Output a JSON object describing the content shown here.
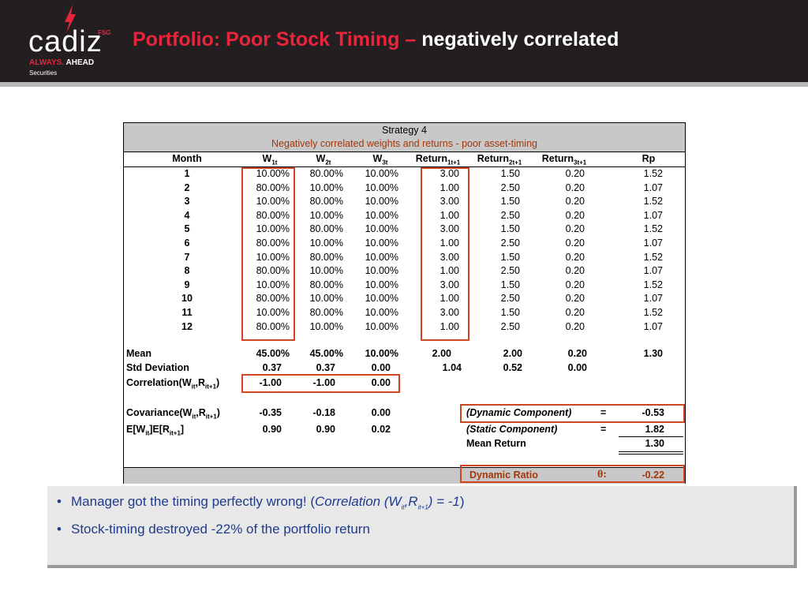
{
  "logo": {
    "word": "cadiz",
    "fsg": "FSG",
    "tag_a": "ALWAYS.",
    "tag_b": "AHEAD",
    "sub": "Securities"
  },
  "title": {
    "red": "Portfolio: Poor Stock Timing – ",
    "white": "negatively correlated"
  },
  "table": {
    "title": "Strategy 4",
    "subtitle": "Negatively correlated weights and returns - poor asset-timing",
    "headers": {
      "month": "Month",
      "w": "W",
      "ret": "Return",
      "rp": "Rp",
      "sub1t": "1t",
      "sub2t": "2t",
      "sub3t": "3t",
      "sub1": "1t+1",
      "sub2": "2t+1",
      "sub3": "3t+1"
    },
    "rows": [
      [
        "1",
        "10.00%",
        "80.00%",
        "10.00%",
        "3.00",
        "1.50",
        "0.20",
        "1.52"
      ],
      [
        "2",
        "80.00%",
        "10.00%",
        "10.00%",
        "1.00",
        "2.50",
        "0.20",
        "1.07"
      ],
      [
        "3",
        "10.00%",
        "80.00%",
        "10.00%",
        "3.00",
        "1.50",
        "0.20",
        "1.52"
      ],
      [
        "4",
        "80.00%",
        "10.00%",
        "10.00%",
        "1.00",
        "2.50",
        "0.20",
        "1.07"
      ],
      [
        "5",
        "10.00%",
        "80.00%",
        "10.00%",
        "3.00",
        "1.50",
        "0.20",
        "1.52"
      ],
      [
        "6",
        "80.00%",
        "10.00%",
        "10.00%",
        "1.00",
        "2.50",
        "0.20",
        "1.07"
      ],
      [
        "7",
        "10.00%",
        "80.00%",
        "10.00%",
        "3.00",
        "1.50",
        "0.20",
        "1.52"
      ],
      [
        "8",
        "80.00%",
        "10.00%",
        "10.00%",
        "1.00",
        "2.50",
        "0.20",
        "1.07"
      ],
      [
        "9",
        "10.00%",
        "80.00%",
        "10.00%",
        "3.00",
        "1.50",
        "0.20",
        "1.52"
      ],
      [
        "10",
        "80.00%",
        "10.00%",
        "10.00%",
        "1.00",
        "2.50",
        "0.20",
        "1.07"
      ],
      [
        "11",
        "10.00%",
        "80.00%",
        "10.00%",
        "3.00",
        "1.50",
        "0.20",
        "1.52"
      ],
      [
        "12",
        "80.00%",
        "10.00%",
        "10.00%",
        "1.00",
        "2.50",
        "0.20",
        "1.07"
      ]
    ],
    "mean": {
      "label": "Mean",
      "w1": "45.00%",
      "w2": "45.00%",
      "w3": "10.00%",
      "r1": "2.00",
      "r2": "2.00",
      "r3": "0.20",
      "rp": "1.30"
    },
    "std": {
      "label": "Std Deviation",
      "w1": "0.37",
      "w2": "0.37",
      "w3": "0.00",
      "r1": "1.04",
      "r2": "0.52",
      "r3": "0.00"
    },
    "corr": {
      "label_a": "Correlation(W",
      "label_b": ",R",
      "label_c": ")",
      "sub_a": "it",
      "sub_b": "it+1",
      "w1": "-1.00",
      "w2": "-1.00",
      "w3": "0.00"
    },
    "cov": {
      "label_a": "Covariance(W",
      "label_b": ",R",
      "label_c": ")",
      "sub_a": "it",
      "sub_b": "it+1",
      "w1": "-0.35",
      "w2": "-0.18",
      "w3": "0.00"
    },
    "eprod": {
      "label_a": "E[W",
      "label_b": "]E[R",
      "label_c": "]",
      "sub_a": "it",
      "sub_b": "it+1",
      "w1": "0.90",
      "w2": "0.90",
      "w3": "0.02"
    },
    "dynamic": {
      "label": "(Dynamic Component)",
      "eq": "=",
      "value": "-0.53"
    },
    "static": {
      "label": "(Static Component)",
      "eq": "=",
      "value": "1.82"
    },
    "mean_return": {
      "label": "Mean Return",
      "value": "1.30"
    },
    "ratio": {
      "label": "Dynamic Ratio",
      "theta": "θ:",
      "value": "-0.22"
    }
  },
  "bullets": {
    "b1_a": "Manager got the timing perfectly wrong! (",
    "b1_b": "Correlation (W",
    "b1_sub1": "it",
    "b1_c": ",R",
    "b1_sub2": "it+1",
    "b1_d": ") = -1",
    "b1_e": ")",
    "b2": "Stock-timing destroyed -22% of the portfolio return",
    "dot": "•"
  }
}
